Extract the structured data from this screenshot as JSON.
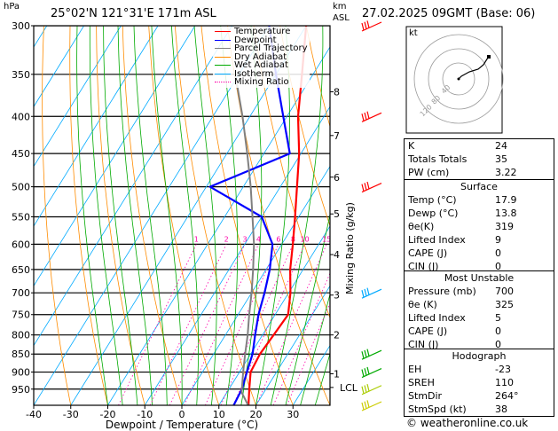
{
  "header": {
    "location": "25°02'N  121°31'E  171m  ASL",
    "datetime": "27.02.2025  09GMT  (Base: 06)",
    "p_unit": "hPa",
    "km_unit": "km",
    "asl": "ASL"
  },
  "legend": {
    "items": [
      {
        "label": "Temperature",
        "color": "#ff0000",
        "style": "solid"
      },
      {
        "label": "Dewpoint",
        "color": "#0000ff",
        "style": "solid"
      },
      {
        "label": "Parcel Trajectory",
        "color": "#808080",
        "style": "solid"
      },
      {
        "label": "Dry Adiabat",
        "color": "#ff8c00",
        "style": "solid"
      },
      {
        "label": "Wet Adiabat",
        "color": "#00aa00",
        "style": "solid"
      },
      {
        "label": "Isotherm",
        "color": "#00aaff",
        "style": "solid"
      },
      {
        "label": "Mixing Ratio",
        "color": "#ff00aa",
        "style": "dotted"
      }
    ]
  },
  "chart_data": {
    "type": "line",
    "title": "",
    "xlabel": "Dewpoint / Temperature (°C)",
    "ylabel": "Mixing Ratio (g/kg)",
    "xlim": [
      -40,
      40
    ],
    "ylim_hpa": [
      1000,
      300
    ],
    "x_ticks": [
      "-40",
      "-30",
      "-20",
      "-10",
      "0",
      "10",
      "20",
      "30"
    ],
    "pressure_levels": [
      "300",
      "350",
      "400",
      "450",
      "500",
      "550",
      "600",
      "650",
      "700",
      "750",
      "800",
      "850",
      "900",
      "950"
    ],
    "km_ticks": [
      {
        "label": "8",
        "p": 370
      },
      {
        "label": "7",
        "p": 425
      },
      {
        "label": "6",
        "p": 485
      },
      {
        "label": "5",
        "p": 545
      },
      {
        "label": "4",
        "p": 620
      },
      {
        "label": "3",
        "p": 705
      },
      {
        "label": "2",
        "p": 800
      },
      {
        "label": "1",
        "p": 905
      },
      {
        "label": "LCL",
        "p": 945
      }
    ],
    "mixing_ratio_labels": [
      "1",
      "2",
      "3",
      "4",
      "6",
      "8",
      "10",
      "15",
      "20",
      "25"
    ],
    "series": [
      {
        "name": "Temperature",
        "color": "#ff0000",
        "points": [
          [
            18.0,
            1000
          ],
          [
            15.5,
            950
          ],
          [
            13.0,
            900
          ],
          [
            12.5,
            850
          ],
          [
            13.0,
            800
          ],
          [
            13.5,
            750
          ],
          [
            10.5,
            700
          ],
          [
            6.5,
            650
          ],
          [
            3.0,
            600
          ],
          [
            -1.0,
            550
          ],
          [
            -5.5,
            500
          ],
          [
            -10.5,
            450
          ],
          [
            -17.0,
            400
          ],
          [
            -23.0,
            350
          ],
          [
            -30.0,
            300
          ]
        ]
      },
      {
        "name": "Dewpoint",
        "color": "#0000ff",
        "points": [
          [
            14.0,
            1000
          ],
          [
            13.5,
            950
          ],
          [
            12.0,
            900
          ],
          [
            10.5,
            850
          ],
          [
            8.0,
            800
          ],
          [
            5.5,
            750
          ],
          [
            3.5,
            700
          ],
          [
            1.0,
            650
          ],
          [
            -2.5,
            600
          ],
          [
            -10.0,
            550
          ],
          [
            -29.0,
            500
          ],
          [
            -13.0,
            450
          ],
          [
            -21.0,
            400
          ],
          [
            -30.0,
            350
          ],
          [
            -40.0,
            300
          ]
        ]
      },
      {
        "name": "Parcel Trajectory",
        "color": "#808080",
        "points": [
          [
            17.9,
            1000
          ],
          [
            14.0,
            960
          ],
          [
            11.0,
            900
          ],
          [
            8.5,
            850
          ],
          [
            6.0,
            800
          ],
          [
            3.0,
            750
          ],
          [
            0.0,
            700
          ],
          [
            -3.5,
            650
          ],
          [
            -7.5,
            600
          ],
          [
            -12.5,
            550
          ],
          [
            -18.0,
            500
          ],
          [
            -24.5,
            450
          ],
          [
            -32.0,
            400
          ],
          [
            -41.0,
            350
          ]
        ]
      }
    ],
    "wind_barbs_p": [
      300,
      400,
      500,
      700,
      850,
      900,
      950,
      1000
    ],
    "hodograph_rings": [
      "40",
      "80",
      "120"
    ],
    "hodograph_label": "kt"
  },
  "indices": [
    {
      "label": "K",
      "value": "24"
    },
    {
      "label": "Totals Totals",
      "value": "35"
    },
    {
      "label": "PW (cm)",
      "value": "3.22"
    }
  ],
  "surface": {
    "title": "Surface",
    "rows": [
      {
        "label": "Temp (°C)",
        "value": "17.9"
      },
      {
        "label": "Dewp (°C)",
        "value": "13.8"
      },
      {
        "label": "θe(K)",
        "value": "319"
      },
      {
        "label": "Lifted Index",
        "value": "9"
      },
      {
        "label": "CAPE (J)",
        "value": "0"
      },
      {
        "label": "CIN (J)",
        "value": "0"
      }
    ]
  },
  "unstable": {
    "title": "Most Unstable",
    "rows": [
      {
        "label": "Pressure (mb)",
        "value": "700"
      },
      {
        "label": "θe (K)",
        "value": "325"
      },
      {
        "label": "Lifted Index",
        "value": "5"
      },
      {
        "label": "CAPE (J)",
        "value": "0"
      },
      {
        "label": "CIN (J)",
        "value": "0"
      }
    ]
  },
  "hodograph": {
    "title": "Hodograph",
    "rows": [
      {
        "label": "EH",
        "value": "-23"
      },
      {
        "label": "SREH",
        "value": "110"
      },
      {
        "label": "StmDir",
        "value": "264°"
      },
      {
        "label": "StmSpd (kt)",
        "value": "38"
      }
    ]
  },
  "credit": "© weatheronline.co.uk"
}
